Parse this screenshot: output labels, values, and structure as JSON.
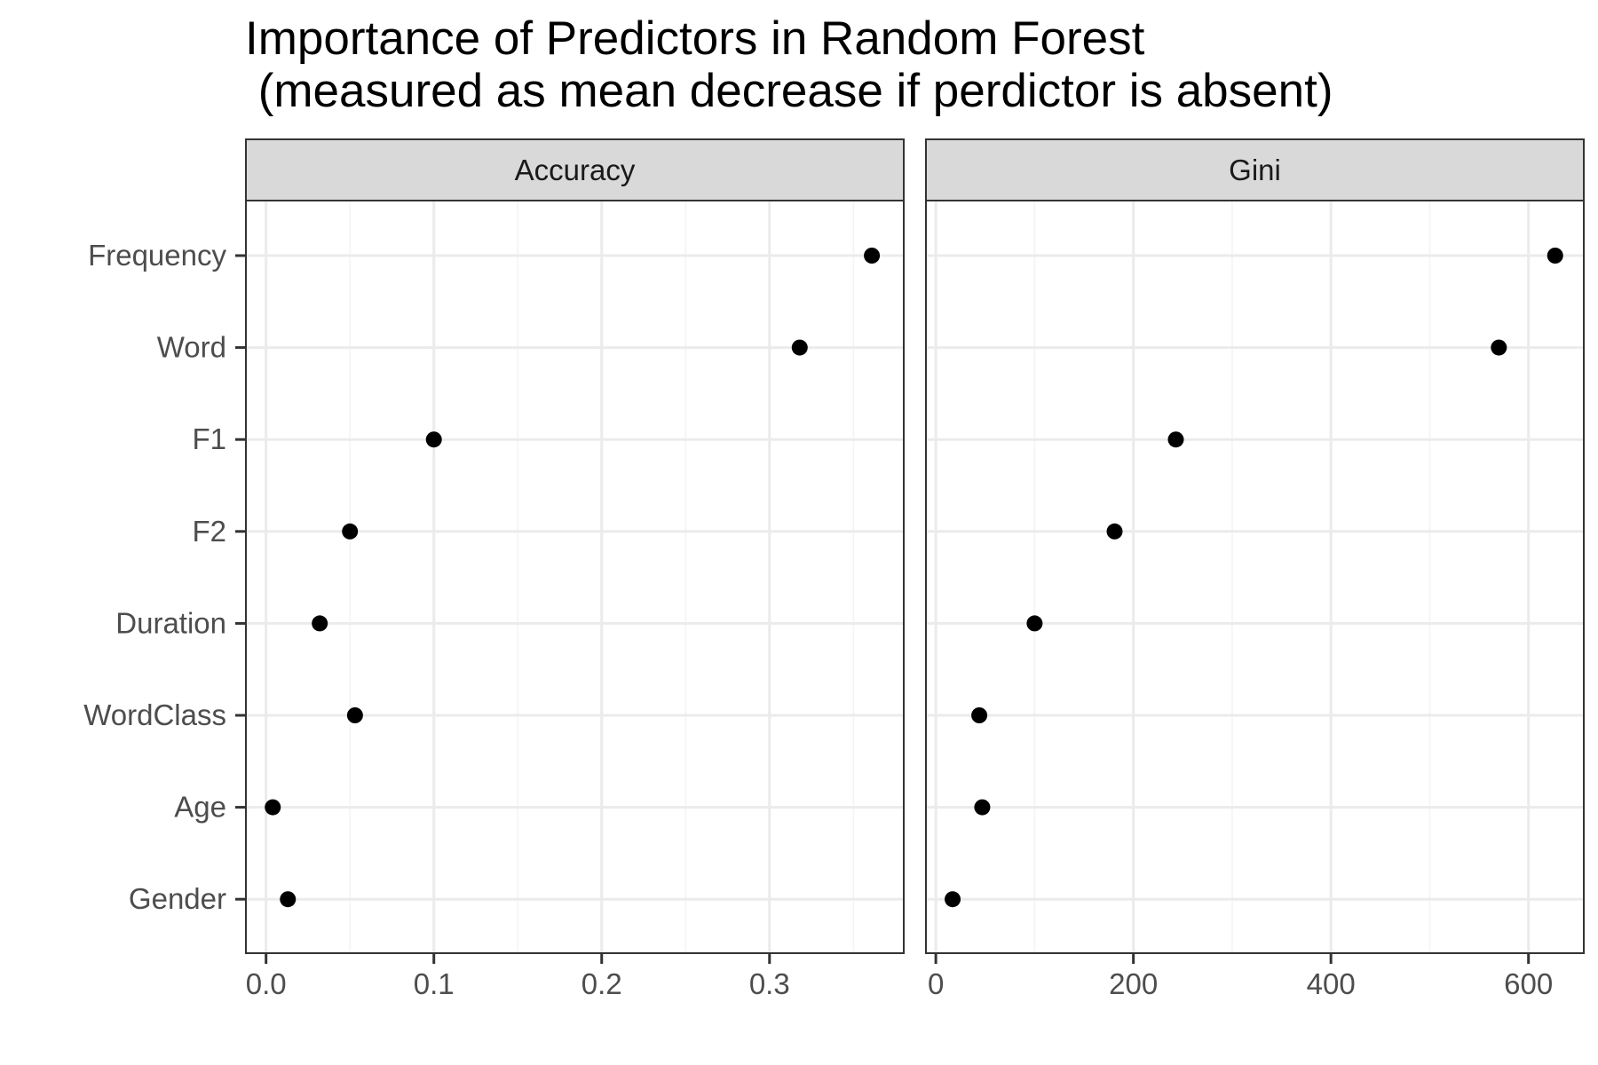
{
  "title_line1": "Importance of Predictors in Random Forest",
  "title_line2": " (measured as mean decrease if perdictor is absent)",
  "chart_data": [
    {
      "type": "scatter",
      "panel": "Accuracy",
      "categories": [
        "Frequency",
        "Word",
        "F1",
        "F2",
        "Duration",
        "WordClass",
        "Age",
        "Gender"
      ],
      "values": [
        0.361,
        0.318,
        0.1,
        0.05,
        0.032,
        0.053,
        0.004,
        0.013
      ],
      "xlim": [
        -0.012,
        0.38
      ],
      "xticks": [
        0.0,
        0.1,
        0.2,
        0.3
      ],
      "xtick_labels": [
        "0.0",
        "0.1",
        "0.2",
        "0.3"
      ],
      "grid": true
    },
    {
      "type": "scatter",
      "panel": "Gini",
      "categories": [
        "Frequency",
        "Word",
        "F1",
        "F2",
        "Duration",
        "WordClass",
        "Age",
        "Gender"
      ],
      "values": [
        627,
        570,
        243,
        181,
        100,
        44,
        47,
        17
      ],
      "xlim": [
        -10,
        656
      ],
      "xticks": [
        0,
        200,
        400,
        600
      ],
      "xtick_labels": [
        "0",
        "200",
        "400",
        "600"
      ],
      "grid": true
    }
  ],
  "colors": {
    "point": "#000000",
    "strip_fill": "#d9d9d9",
    "panel_border": "#333333",
    "grid_major": "#ebebeb",
    "grid_minor": "#f4f4f4",
    "tick_label": "#4d4d4d"
  }
}
